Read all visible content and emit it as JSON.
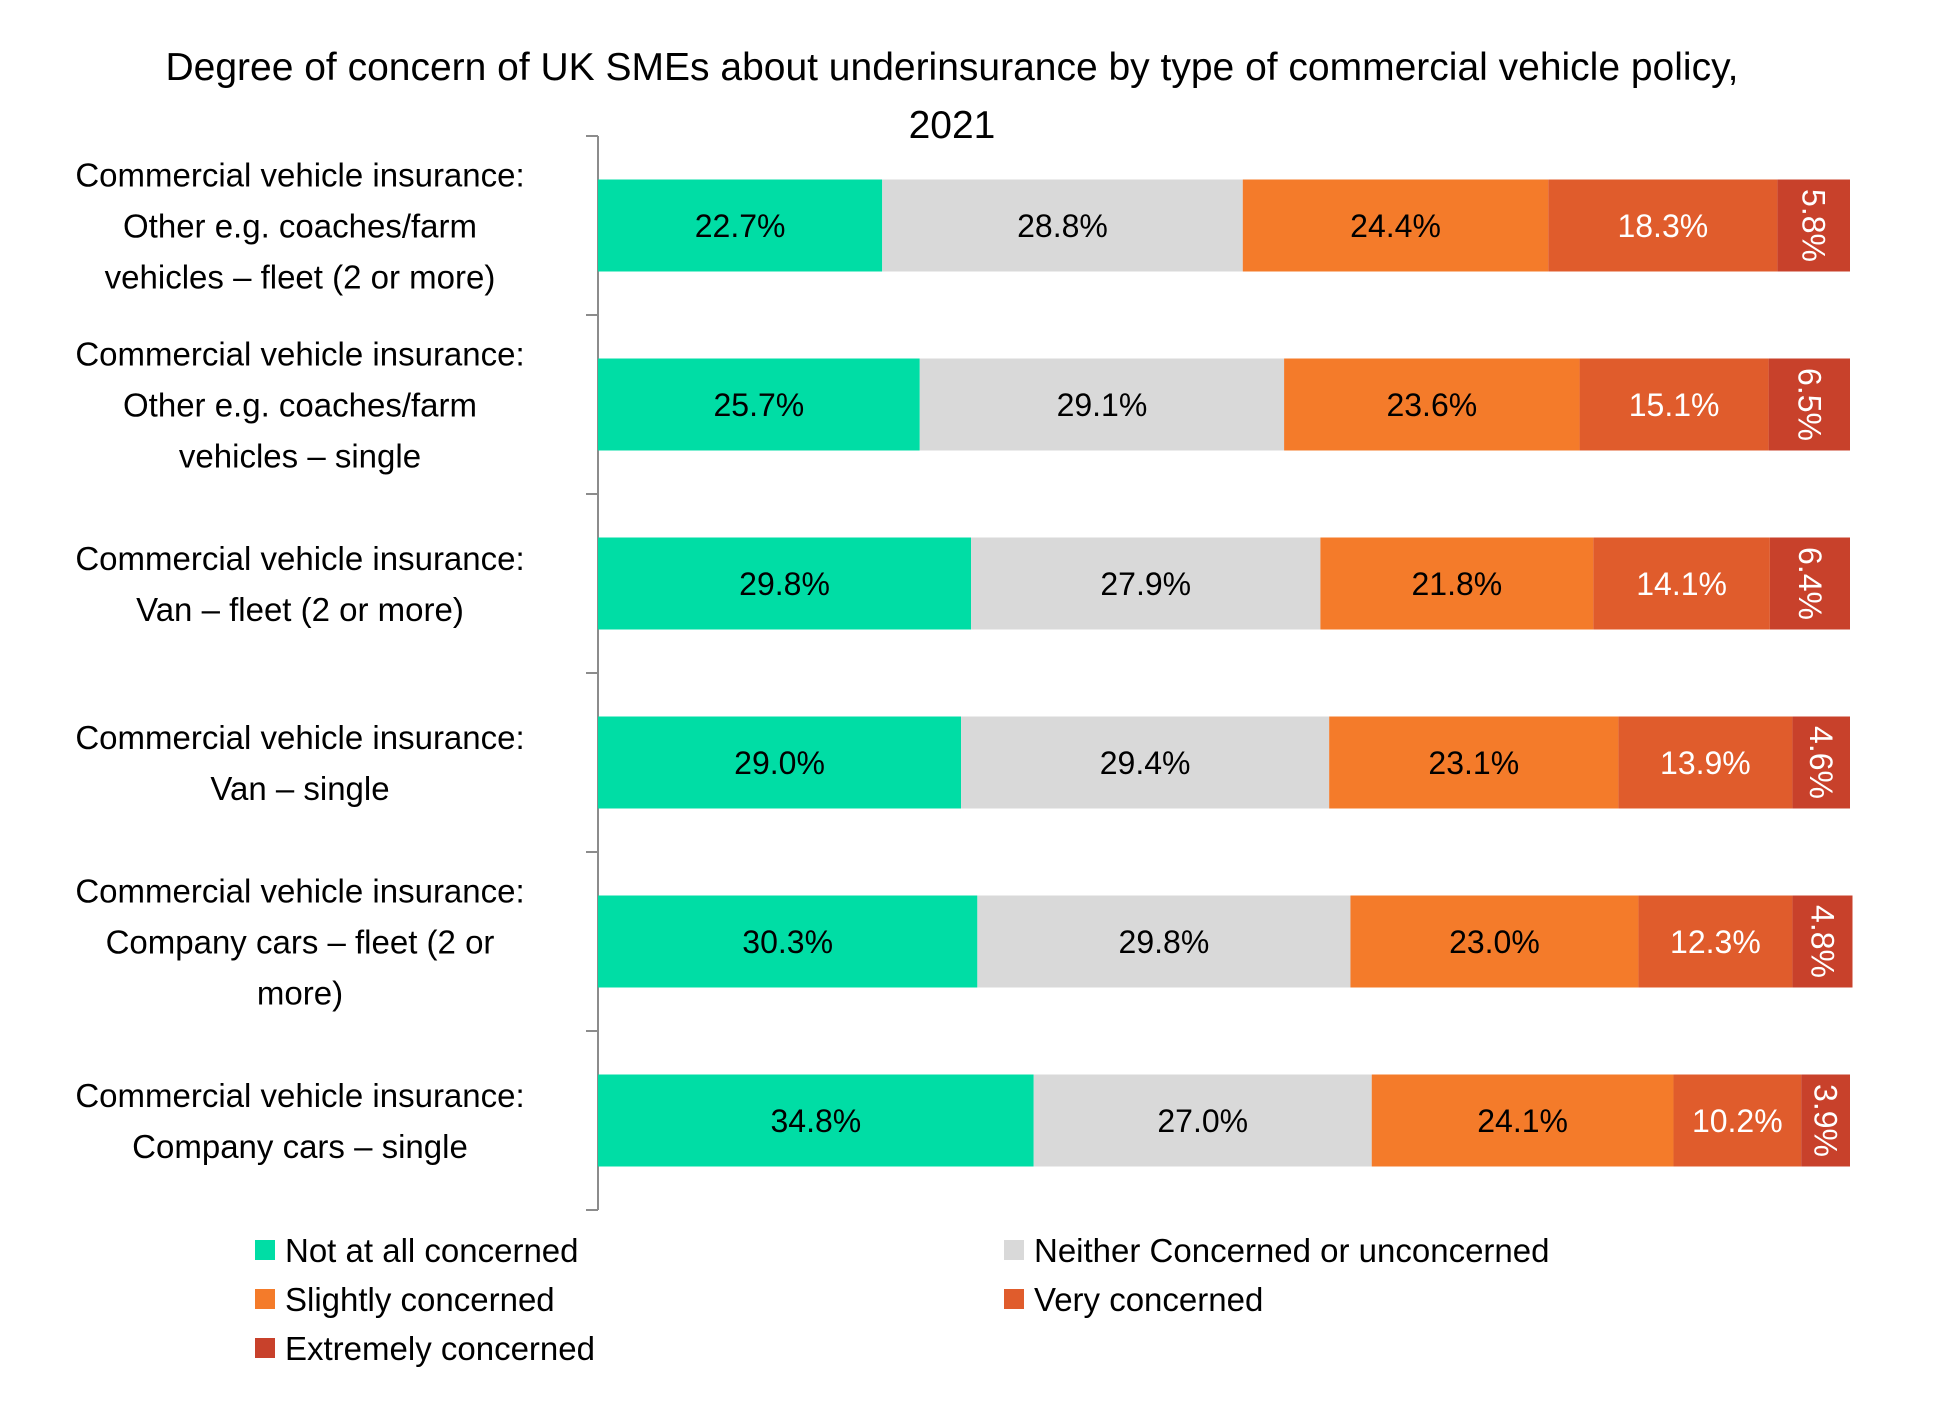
{
  "chart_data": {
    "type": "bar",
    "orientation": "horizontal",
    "stacked": true,
    "title": "Degree of concern of UK SMEs about underinsurance by type of commercial vehicle policy, 2021",
    "title_lines": [
      "Degree of concern of UK SMEs about underinsurance by type of commercial vehicle policy,",
      "2021"
    ],
    "xlabel": "",
    "ylabel": "",
    "xlim": [
      0,
      100
    ],
    "grid": false,
    "legend_position": "bottom",
    "categories": [
      "Commercial vehicle insurance: Other e.g. coaches/farm vehicles – fleet (2 or more)",
      "Commercial vehicle insurance: Other e.g. coaches/farm vehicles – single",
      "Commercial vehicle insurance: Van – fleet (2 or more)",
      "Commercial vehicle insurance: Van – single",
      "Commercial vehicle insurance: Company cars – fleet (2 or more)",
      "Commercial vehicle insurance: Company cars – single"
    ],
    "category_label_lines": [
      [
        "Commercial vehicle insurance:",
        "Other e.g. coaches/farm",
        "vehicles – fleet (2 or more)"
      ],
      [
        "Commercial vehicle insurance:",
        "Other e.g. coaches/farm",
        "vehicles – single"
      ],
      [
        "Commercial vehicle insurance:",
        "Van – fleet (2 or more)"
      ],
      [
        "Commercial vehicle insurance:",
        "Van – single"
      ],
      [
        "Commercial vehicle insurance:",
        "Company cars – fleet (2 or",
        "more)"
      ],
      [
        "Commercial vehicle insurance:",
        "Company cars – single"
      ]
    ],
    "series": [
      {
        "name": "Not at all concerned",
        "color": "#00DDA5",
        "label_color": "#000000",
        "values": [
          22.7,
          25.7,
          29.8,
          29.0,
          30.3,
          34.8
        ],
        "labels": [
          "22.7%",
          "25.7%",
          "29.8%",
          "29.0%",
          "30.3%",
          "34.8%"
        ]
      },
      {
        "name": "Neither Concerned or unconcerned",
        "color": "#D9D9D9",
        "label_color": "#000000",
        "values": [
          28.8,
          29.1,
          27.9,
          29.4,
          29.8,
          27.0
        ],
        "labels": [
          "28.8%",
          "29.1%",
          "27.9%",
          "29.4%",
          "29.8%",
          "27.0%"
        ]
      },
      {
        "name": "Slightly concerned",
        "color": "#F47B2A",
        "label_color": "#000000",
        "values": [
          24.4,
          23.6,
          21.8,
          23.1,
          23.0,
          24.1
        ],
        "labels": [
          "24.4%",
          "23.6%",
          "21.8%",
          "23.1%",
          "23.0%",
          "24.1%"
        ]
      },
      {
        "name": "Very concerned",
        "color": "#E05C2C",
        "label_color": "#FFFFFF",
        "values": [
          18.3,
          15.1,
          14.1,
          13.9,
          12.3,
          10.2
        ],
        "labels": [
          "18.3%",
          "15.1%",
          "14.1%",
          "13.9%",
          "12.3%",
          "10.2%"
        ]
      },
      {
        "name": "Extremely concerned",
        "color": "#C8412B",
        "label_color": "#FFFFFF",
        "label_rotated": true,
        "values": [
          5.8,
          6.5,
          6.4,
          4.6,
          4.8,
          3.9
        ],
        "labels": [
          "5.8%",
          "6.5%",
          "6.4%",
          "4.6%",
          "4.8%",
          "3.9%"
        ]
      }
    ]
  }
}
